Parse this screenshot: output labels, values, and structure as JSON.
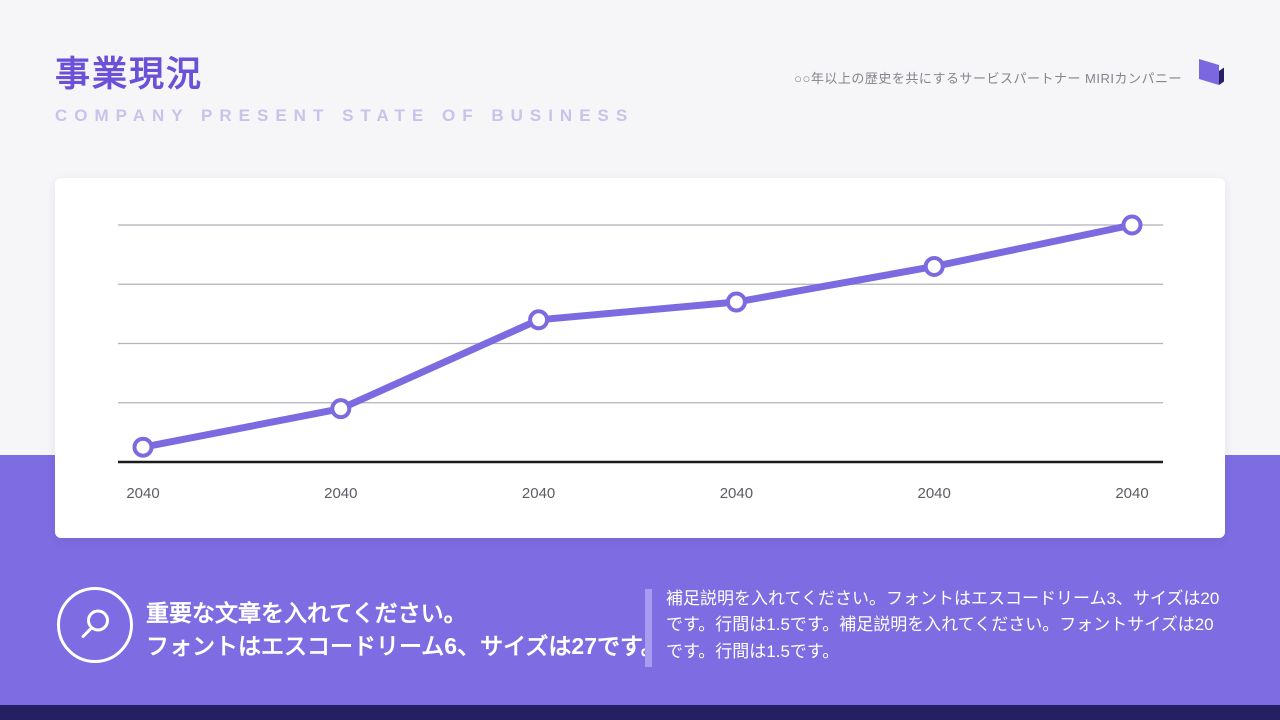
{
  "header": {
    "title": "事業現況",
    "subtitle": "COMPANY PRESENT STATE OF BUSINESS",
    "tagline": "○○年以上の歴史を共にするサービスパートナー MIRIカンパニー"
  },
  "chart_data": {
    "type": "line",
    "title": "",
    "categories": [
      "2040",
      "2040",
      "2040",
      "2040",
      "2040",
      "2040"
    ],
    "series": [
      {
        "name": "business-trend",
        "values": [
          0.25,
          0.9,
          2.4,
          2.7,
          3.3,
          4.0
        ]
      }
    ],
    "ylim": [
      0,
      4.4
    ],
    "gridlines": [
      1,
      2,
      3,
      4
    ],
    "grid": true,
    "legend": "none",
    "xlabel": "",
    "ylabel": ""
  },
  "callout": {
    "line1": "重要な文章を入れてください。",
    "line2": "フォントはエスコードリーム6、サイズは27です。"
  },
  "note": {
    "text": "補足説明を入れてください。フォントはエスコードリーム3、サイズは20です。行間は1.5です。補足説明を入れてください。フォントサイズは20です。行間は1.5です。"
  },
  "icons": {
    "magnifier": "magnifier-icon",
    "logo": "brand-logo-icon"
  },
  "colors": {
    "accent": "#6b50d8",
    "subtitle": "#c9c3ec",
    "line": "#7b6ae0",
    "marker_fill": "#ffffff",
    "band": "#7d6ce2",
    "footer": "#232064",
    "divider": "#a89cf0",
    "grid": "#b3b1ba",
    "axis": "#1a1a1f",
    "tick_text": "#5c5c63",
    "logo_light": "#7b68e0",
    "logo_dark": "#252163"
  }
}
